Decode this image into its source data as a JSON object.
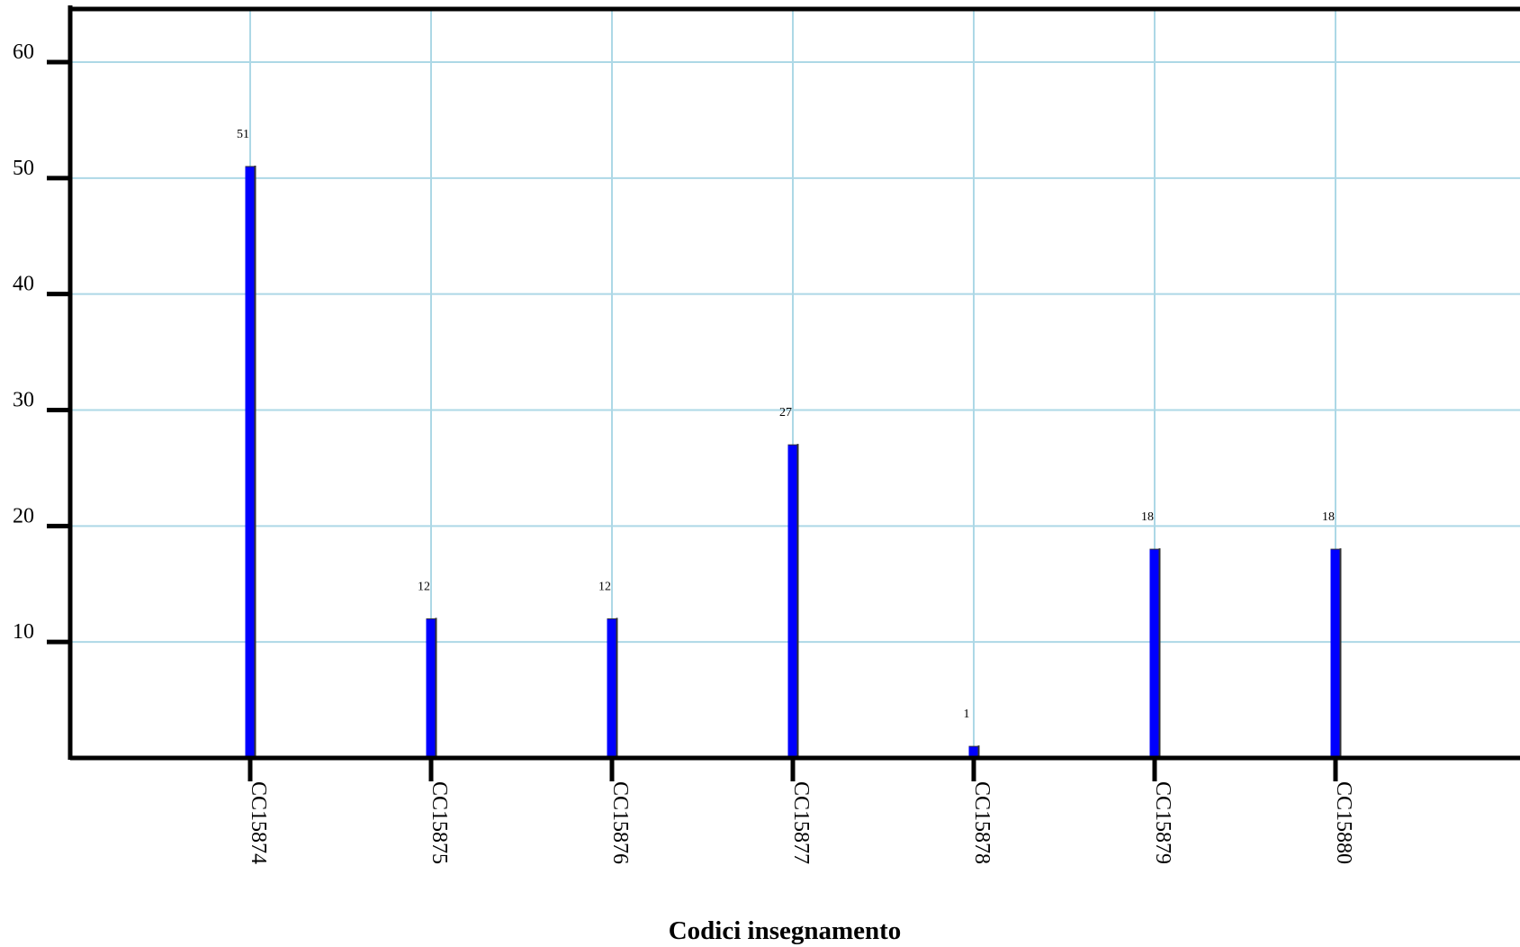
{
  "chart_data": {
    "type": "bar",
    "categories": [
      "CC15874",
      "CC15875",
      "CC15876",
      "CC15877",
      "CC15878",
      "CC15879",
      "CC15880"
    ],
    "values": [
      51,
      12,
      12,
      27,
      1,
      18,
      18
    ],
    "data_labels": [
      "51",
      "12",
      "12",
      "27",
      "1",
      "18",
      "18"
    ],
    "xlabel": "Codici insegnamento",
    "ylabel": "",
    "ylim": [
      0,
      65
    ],
    "yticks": [
      10,
      20,
      30,
      40,
      50,
      60
    ],
    "ytick_labels": [
      "10",
      "20",
      "30",
      "40",
      "50",
      "60"
    ],
    "grid": true,
    "colors": {
      "bar": "#0000ff",
      "bar_edge": "#333333",
      "grid": "#add8e6",
      "axis": "#000000"
    }
  }
}
